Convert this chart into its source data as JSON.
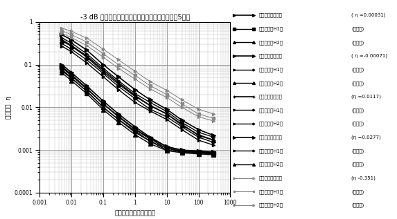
{
  "title": "-3 dB 帯域内測定点数－損失係数測定値（材料：5種）",
  "xlabel": "半値幅内の測定ライン数",
  "ylabel": "損失係数  η",
  "xlim": [
    0.001,
    1000
  ],
  "ylim": [
    0.0001,
    1
  ],
  "background": "#ffffff",
  "groups": [
    {
      "eta_label": "( η =0.00031)",
      "color": "#000000",
      "series": [
        {
          "type": "swept",
          "marker": ">",
          "lw": 1.2,
          "ms": 4,
          "x": [
            0.005,
            0.01,
            0.03,
            0.1,
            0.3,
            1,
            3,
            10,
            30,
            100,
            300
          ],
          "y": [
            0.1,
            0.065,
            0.032,
            0.014,
            0.007,
            0.0035,
            0.002,
            0.0012,
            0.001,
            0.00095,
            0.0009
          ]
        },
        {
          "type": "H1",
          "marker": "s",
          "lw": 1.0,
          "ms": 4,
          "x": [
            0.005,
            0.01,
            0.03,
            0.1,
            0.3,
            1,
            3,
            10,
            30,
            100,
            300
          ],
          "y": [
            0.085,
            0.055,
            0.027,
            0.012,
            0.006,
            0.003,
            0.0018,
            0.0011,
            0.00095,
            0.0009,
            0.00085
          ]
        },
        {
          "type": "H2",
          "marker": "^",
          "lw": 1.0,
          "ms": 4,
          "x": [
            0.005,
            0.01,
            0.03,
            0.1,
            0.3,
            1,
            3,
            10,
            30,
            100,
            300
          ],
          "y": [
            0.072,
            0.048,
            0.024,
            0.01,
            0.0052,
            0.0028,
            0.0016,
            0.001,
            0.0009,
            0.00085,
            0.0008
          ]
        }
      ]
    },
    {
      "eta_label": "( η =-0.00071)",
      "color": "#000000",
      "series": [
        {
          "type": "swept",
          "marker": ">",
          "lw": 1.2,
          "ms": 4,
          "x": [
            0.005,
            0.01,
            0.03,
            0.1,
            0.3,
            1,
            3,
            10,
            30,
            100,
            300
          ],
          "y": [
            0.09,
            0.058,
            0.028,
            0.012,
            0.0062,
            0.0031,
            0.0019,
            0.0012,
            0.00098,
            0.00092,
            0.00088
          ]
        },
        {
          "type": "H1",
          "marker": ">",
          "lw": 1.0,
          "ms": 3,
          "x": [
            0.005,
            0.01,
            0.03,
            0.1,
            0.3,
            1,
            3,
            10,
            30,
            100,
            300
          ],
          "y": [
            0.077,
            0.049,
            0.024,
            0.01,
            0.0052,
            0.0026,
            0.0016,
            0.0011,
            0.00092,
            0.00087,
            0.00083
          ]
        },
        {
          "type": "H2",
          "marker": "^",
          "lw": 1.0,
          "ms": 4,
          "x": [
            0.005,
            0.01,
            0.03,
            0.1,
            0.3,
            1,
            3,
            10,
            30,
            100,
            300
          ],
          "y": [
            0.065,
            0.042,
            0.021,
            0.0088,
            0.0045,
            0.0023,
            0.0014,
            0.00097,
            0.00086,
            0.00081,
            0.00077
          ]
        }
      ]
    },
    {
      "eta_label": "(η =0.0117)",
      "color": "#000000",
      "series": [
        {
          "type": "swept",
          "marker": "+",
          "lw": 1.2,
          "ms": 5,
          "x": [
            0.005,
            0.01,
            0.03,
            0.1,
            0.3,
            1,
            3,
            10,
            30,
            100,
            300
          ],
          "y": [
            0.38,
            0.28,
            0.16,
            0.075,
            0.038,
            0.019,
            0.011,
            0.007,
            0.004,
            0.0022,
            0.0017
          ]
        },
        {
          "type": "H1",
          "marker": ">",
          "lw": 1.0,
          "ms": 3,
          "x": [
            0.005,
            0.01,
            0.03,
            0.1,
            0.3,
            1,
            3,
            10,
            30,
            100,
            300
          ],
          "y": [
            0.31,
            0.23,
            0.13,
            0.062,
            0.031,
            0.016,
            0.009,
            0.006,
            0.0035,
            0.002,
            0.0015
          ]
        },
        {
          "type": "H2",
          "marker": ">",
          "lw": 1.0,
          "ms": 3,
          "x": [
            0.005,
            0.01,
            0.03,
            0.1,
            0.3,
            1,
            3,
            10,
            30,
            100,
            300
          ],
          "y": [
            0.27,
            0.2,
            0.11,
            0.052,
            0.026,
            0.013,
            0.0082,
            0.0052,
            0.003,
            0.0017,
            0.0013
          ]
        }
      ]
    },
    {
      "eta_label": "(η =0.0277)",
      "color": "#000000",
      "series": [
        {
          "type": "swept",
          "marker": ">",
          "lw": 1.2,
          "ms": 4,
          "x": [
            0.005,
            0.01,
            0.03,
            0.1,
            0.3,
            1,
            3,
            10,
            30,
            100,
            300
          ],
          "y": [
            0.5,
            0.38,
            0.22,
            0.1,
            0.052,
            0.026,
            0.015,
            0.009,
            0.005,
            0.003,
            0.0022
          ]
        },
        {
          "type": "H1",
          "marker": ">",
          "lw": 1.0,
          "ms": 3,
          "x": [
            0.005,
            0.01,
            0.03,
            0.1,
            0.3,
            1,
            3,
            10,
            30,
            100,
            300
          ],
          "y": [
            0.42,
            0.32,
            0.18,
            0.083,
            0.042,
            0.021,
            0.013,
            0.008,
            0.0044,
            0.0026,
            0.002
          ]
        },
        {
          "type": "H2",
          "marker": "^",
          "lw": 1.0,
          "ms": 4,
          "x": [
            0.005,
            0.01,
            0.03,
            0.1,
            0.3,
            1,
            3,
            10,
            30,
            100,
            300
          ],
          "y": [
            0.36,
            0.27,
            0.15,
            0.068,
            0.035,
            0.018,
            0.011,
            0.007,
            0.0038,
            0.0023,
            0.0017
          ]
        }
      ]
    },
    {
      "eta_label": "(η -0.351)",
      "color": "#888888",
      "series": [
        {
          "type": "swept",
          "marker": ">",
          "lw": 0.8,
          "ms": 3,
          "x": [
            0.005,
            0.01,
            0.03,
            0.1,
            0.3,
            1,
            3,
            10,
            30,
            100,
            300
          ],
          "y": [
            0.72,
            0.6,
            0.42,
            0.23,
            0.13,
            0.07,
            0.04,
            0.025,
            0.015,
            0.009,
            0.007
          ]
        },
        {
          "type": "H1",
          "marker": "s",
          "lw": 0.8,
          "ms": 3,
          "x": [
            0.005,
            0.01,
            0.03,
            0.1,
            0.3,
            1,
            3,
            10,
            30,
            100,
            300
          ],
          "y": [
            0.62,
            0.5,
            0.34,
            0.18,
            0.1,
            0.056,
            0.032,
            0.02,
            0.012,
            0.007,
            0.0055
          ]
        },
        {
          "type": "H2",
          "marker": ">",
          "lw": 0.8,
          "ms": 3,
          "x": [
            0.005,
            0.01,
            0.03,
            0.1,
            0.3,
            1,
            3,
            10,
            30,
            100,
            300
          ],
          "y": [
            0.54,
            0.43,
            0.28,
            0.15,
            0.082,
            0.046,
            0.027,
            0.017,
            0.01,
            0.006,
            0.0048
          ]
        }
      ]
    }
  ],
  "legend_entries": [
    {
      "スウェプトサイン": "( η =0.00031)"
    },
    {
      "ランダム（H1）": "( 「 )"
    },
    {
      "ランダム（H2）": "( 「 )"
    },
    {
      "スウェプトサイン": "( η =-0.00071)"
    },
    {
      "ランダム（H1）": "( 「 )"
    },
    {
      "ランダム（H2）": "( 「 )"
    },
    {
      "スウェプトサイン": "(η =0.0117)"
    },
    {
      "ランダム（H1）": "( 「 )"
    },
    {
      "ランダム（H2）": "( 「 )"
    },
    {
      "スウェプトサイン": "(η =0.0277)"
    },
    {
      "ランダム（H1）": "( 「 )"
    },
    {
      "ランダム（H2）": "( 「 )"
    },
    {
      "スウェプトサイン": "(η -0.351)"
    },
    {
      "ランダム（H1）": "( 「 )"
    },
    {
      "ランダム（H2）": "( 「 )"
    }
  ]
}
